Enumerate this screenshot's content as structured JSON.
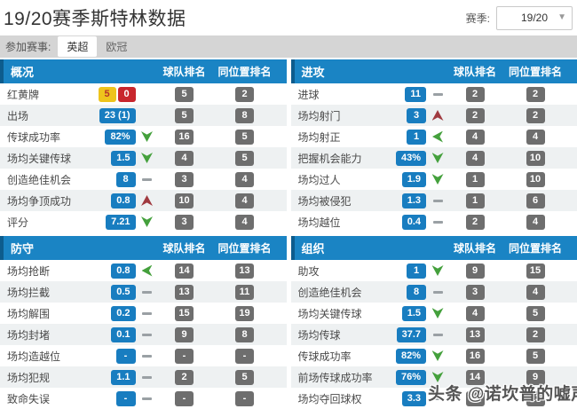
{
  "page": {
    "title": "19/20赛季斯特林数据",
    "season_label": "赛季:",
    "season_value": "19/20",
    "competition_label": "参加赛事:",
    "competitions": [
      {
        "label": "英超",
        "active": true
      },
      {
        "label": "欧冠",
        "active": false
      }
    ],
    "watermark": "头条 @诺坎普的嘘声"
  },
  "icons": {
    "dropdown_caret": "▼"
  },
  "colors": {
    "header_blue": "#1a84c4",
    "header_stripe": "#0d5c8d",
    "value_badge_blue": "#187dc0",
    "rank_badge_gray": "#6e6e6e",
    "yellow_card": "#eec41c",
    "red_card": "#c8262d",
    "trend_green": "#44a03c",
    "trend_red": "#a03a40"
  },
  "columns": {
    "team_rank": "球队排名",
    "position_rank": "同位置排名"
  },
  "panels": [
    {
      "title": "概况",
      "rows": [
        {
          "label": "红黄牌",
          "cards": {
            "yellow": "5",
            "red": "0"
          },
          "trend": "none",
          "team": "5",
          "pos": "2"
        },
        {
          "label": "出场",
          "value": "23 (1)",
          "trend": "none",
          "team": "5",
          "pos": "8"
        },
        {
          "label": "传球成功率",
          "value": "82%",
          "trend": "down-green",
          "team": "16",
          "pos": "5"
        },
        {
          "label": "场均关键传球",
          "value": "1.5",
          "trend": "down-green",
          "team": "4",
          "pos": "5"
        },
        {
          "label": "创造绝佳机会",
          "value": "8",
          "trend": "flat",
          "team": "3",
          "pos": "4"
        },
        {
          "label": "场均争顶成功",
          "value": "0.8",
          "trend": "up-red",
          "team": "10",
          "pos": "4"
        },
        {
          "label": "评分",
          "value": "7.21",
          "trend": "down-green",
          "team": "3",
          "pos": "4"
        }
      ]
    },
    {
      "title": "进攻",
      "rows": [
        {
          "label": "进球",
          "value": "11",
          "trend": "flat",
          "team": "2",
          "pos": "2"
        },
        {
          "label": "场均射门",
          "value": "3",
          "trend": "up-red",
          "team": "2",
          "pos": "2"
        },
        {
          "label": "场均射正",
          "value": "1",
          "trend": "left-green",
          "team": "4",
          "pos": "4"
        },
        {
          "label": "把握机会能力",
          "value": "43%",
          "trend": "down-green",
          "team": "4",
          "pos": "10"
        },
        {
          "label": "场均过人",
          "value": "1.9",
          "trend": "down-green",
          "team": "1",
          "pos": "10"
        },
        {
          "label": "场均被侵犯",
          "value": "1.3",
          "trend": "flat",
          "team": "1",
          "pos": "6"
        },
        {
          "label": "场均越位",
          "value": "0.4",
          "trend": "flat",
          "team": "2",
          "pos": "4"
        }
      ]
    },
    {
      "title": "防守",
      "rows": [
        {
          "label": "场均抢断",
          "value": "0.8",
          "trend": "left-green",
          "team": "14",
          "pos": "13"
        },
        {
          "label": "场均拦截",
          "value": "0.5",
          "trend": "flat",
          "team": "13",
          "pos": "11"
        },
        {
          "label": "场均解围",
          "value": "0.2",
          "trend": "flat",
          "team": "15",
          "pos": "19"
        },
        {
          "label": "场均封堵",
          "value": "0.1",
          "trend": "flat",
          "team": "9",
          "pos": "8"
        },
        {
          "label": "场均造越位",
          "value": "-",
          "trend": "flat",
          "team": "-",
          "pos": "-"
        },
        {
          "label": "场均犯规",
          "value": "1.1",
          "trend": "flat",
          "team": "2",
          "pos": "5"
        },
        {
          "label": "致命失误",
          "value": "-",
          "trend": "flat",
          "team": "-",
          "pos": "-"
        }
      ]
    },
    {
      "title": "组织",
      "rows": [
        {
          "label": "助攻",
          "value": "1",
          "trend": "down-green",
          "team": "9",
          "pos": "15"
        },
        {
          "label": "创造绝佳机会",
          "value": "8",
          "trend": "flat",
          "team": "3",
          "pos": "4"
        },
        {
          "label": "场均关键传球",
          "value": "1.5",
          "trend": "down-green",
          "team": "4",
          "pos": "5"
        },
        {
          "label": "场均传球",
          "value": "37.7",
          "trend": "flat",
          "team": "13",
          "pos": "2"
        },
        {
          "label": "传球成功率",
          "value": "82%",
          "trend": "down-green",
          "team": "16",
          "pos": "5"
        },
        {
          "label": "前场传球成功率",
          "value": "76%",
          "trend": "down-green",
          "team": "14",
          "pos": "9"
        },
        {
          "label": "场均夺回球权",
          "value": "3.3",
          "trend": "flat",
          "team": "13",
          "pos": "13"
        }
      ]
    }
  ]
}
